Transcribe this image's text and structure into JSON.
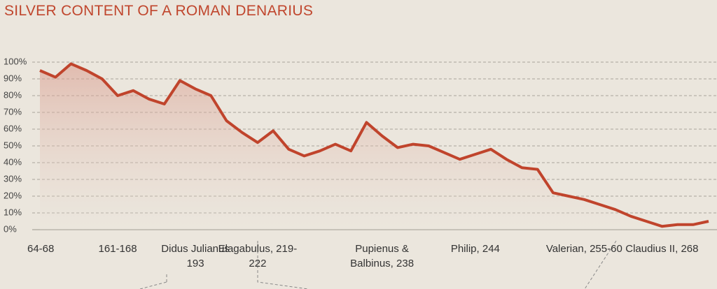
{
  "chart_data": {
    "type": "area",
    "title": "SILVER CONTENT OF A ROMAN DENARIUS",
    "categories": [
      "64-68",
      null,
      null,
      null,
      null,
      "161-168",
      null,
      null,
      null,
      null,
      "Didus Julianus 193",
      null,
      null,
      null,
      "Elagabulus, 219-222",
      null,
      null,
      null,
      null,
      null,
      null,
      null,
      "Pupienus & Balbinus, 238",
      null,
      null,
      null,
      null,
      null,
      "Philip, 244",
      null,
      null,
      null,
      null,
      null,
      null,
      "Valerian, 255-60",
      null,
      null,
      null,
      null,
      "Claudius II, 268",
      null,
      null,
      null
    ],
    "series": [
      {
        "name": "Silver content",
        "color": "#c0442c",
        "values": [
          95,
          91,
          99,
          95,
          90,
          80,
          83,
          78,
          75,
          89,
          84,
          80,
          65,
          58,
          52,
          59,
          48,
          44,
          47,
          51,
          47,
          64,
          56,
          49,
          51,
          50,
          46,
          42,
          45,
          48,
          42,
          37,
          36,
          22,
          20,
          18,
          15,
          12,
          8,
          5,
          2,
          3,
          3,
          5
        ]
      }
    ],
    "ylim": [
      0,
      100
    ],
    "yticks": [
      {
        "value": 0,
        "label": "0%"
      },
      {
        "value": 10,
        "label": "10%"
      },
      {
        "value": 20,
        "label": "20%"
      },
      {
        "value": 30,
        "label": "30%"
      },
      {
        "value": 40,
        "label": "40%"
      },
      {
        "value": 50,
        "label": "50%"
      },
      {
        "value": 60,
        "label": "60%"
      },
      {
        "value": 70,
        "label": "70%"
      },
      {
        "value": 80,
        "label": "80%"
      },
      {
        "value": 90,
        "label": "90%"
      },
      {
        "value": 100,
        "label": "100%"
      }
    ],
    "grid": true
  }
}
